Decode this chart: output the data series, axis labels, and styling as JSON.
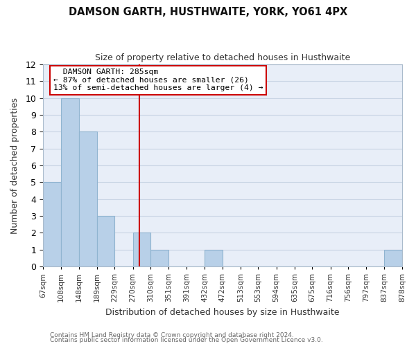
{
  "title": "DAMSON GARTH, HUSTHWAITE, YORK, YO61 4PX",
  "subtitle": "Size of property relative to detached houses in Husthwaite",
  "xlabel": "Distribution of detached houses by size in Husthwaite",
  "ylabel": "Number of detached properties",
  "bin_edges": [
    67,
    108,
    148,
    189,
    229,
    270,
    310,
    351,
    391,
    432,
    472,
    513,
    553,
    594,
    635,
    675,
    716,
    756,
    797,
    837,
    878
  ],
  "bin_labels": [
    "67sqm",
    "108sqm",
    "148sqm",
    "189sqm",
    "229sqm",
    "270sqm",
    "310sqm",
    "351sqm",
    "391sqm",
    "432sqm",
    "472sqm",
    "513sqm",
    "553sqm",
    "594sqm",
    "635sqm",
    "675sqm",
    "716sqm",
    "756sqm",
    "797sqm",
    "837sqm",
    "878sqm"
  ],
  "counts": [
    5,
    10,
    8,
    3,
    0,
    2,
    1,
    0,
    0,
    1,
    0,
    0,
    0,
    0,
    0,
    0,
    0,
    0,
    0,
    1
  ],
  "bar_color": "#b8d0e8",
  "bar_edge_color": "#90b4d0",
  "red_line_x": 285,
  "red_line_color": "#cc0000",
  "annotation_title": "DAMSON GARTH: 285sqm",
  "annotation_line1": "← 87% of detached houses are smaller (26)",
  "annotation_line2": "13% of semi-detached houses are larger (4) →",
  "annotation_box_color": "#ffffff",
  "annotation_border_color": "#cc0000",
  "ylim": [
    0,
    12
  ],
  "grid_color": "#c8d4e4",
  "background_color": "#ffffff",
  "plot_bg_color": "#e8eef8",
  "footer1": "Contains HM Land Registry data © Crown copyright and database right 2024.",
  "footer2": "Contains public sector information licensed under the Open Government Licence v3.0."
}
